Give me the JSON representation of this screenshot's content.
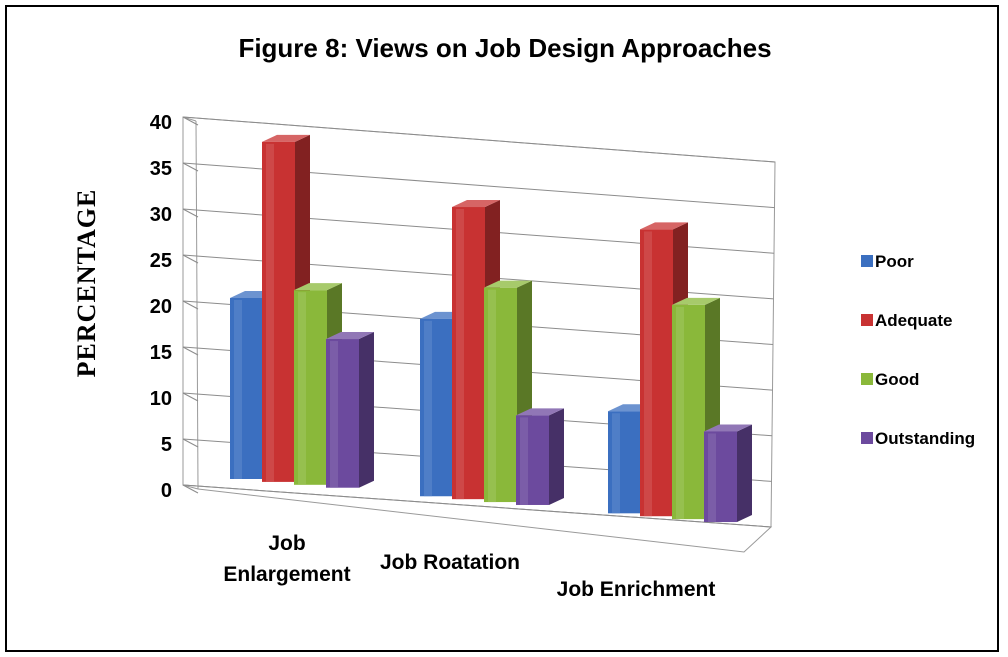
{
  "chart_data": {
    "type": "bar",
    "title": "Figure 8: Views on Job Design Approaches",
    "ylabel": "PERCENTAGE",
    "xlabel": "",
    "ylim": [
      0,
      40
    ],
    "yticks": [
      "0",
      "5",
      "10",
      "15",
      "20",
      "25",
      "30",
      "35",
      "40"
    ],
    "categories": [
      [
        "Job",
        "Enlargement"
      ],
      [
        "Job Roatation"
      ],
      [
        "Job Enrichment"
      ]
    ],
    "series": [
      {
        "name": "Poor",
        "values": [
          20,
          21,
          13
        ],
        "color": "#3b6fc0"
      },
      {
        "name": "Adequate",
        "values": [
          38,
          35,
          37
        ],
        "color": "#c83232"
      },
      {
        "name": "Good",
        "values": [
          22,
          26,
          28
        ],
        "color": "#8ab83a"
      },
      {
        "name": "Outstanding",
        "values": [
          17,
          11,
          12
        ],
        "color": "#6c4a9e"
      }
    ],
    "legend": "right",
    "grid": true,
    "style": "3d-clustered-column"
  }
}
